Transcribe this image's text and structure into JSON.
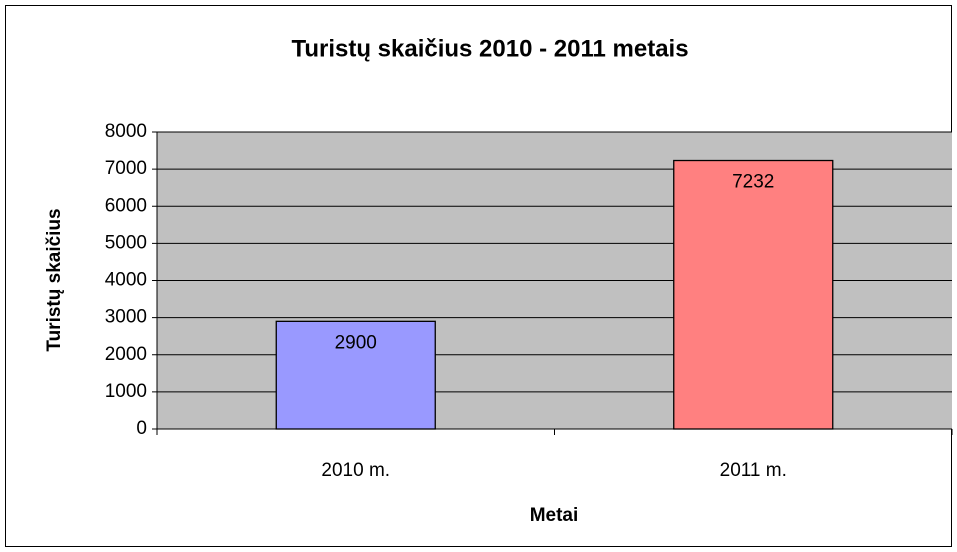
{
  "chart_data": {
    "type": "bar",
    "title": "Turistų skaičius 2010 - 2011 metais",
    "y_label": "Turistų skaičius",
    "x_label": "Metai",
    "categories": [
      "2010 m.",
      "2011 m."
    ],
    "values": [
      2900,
      7232
    ],
    "colors": [
      "#9999ff",
      "#ff8080"
    ],
    "ylim": [
      0,
      8000
    ],
    "yticks": [
      0,
      1000,
      2000,
      3000,
      4000,
      5000,
      6000,
      7000,
      8000
    ],
    "grid": true,
    "data_labels": true
  }
}
